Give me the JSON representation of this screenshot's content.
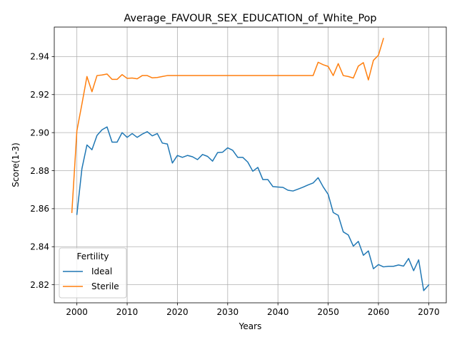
{
  "chart_data": {
    "type": "line",
    "title": "Average_FAVOUR_SEX_EDUCATION_of_White_Pop",
    "xlabel": "Years",
    "ylabel": "Score(1-3)",
    "xlim": [
      1995.5,
      2073.5
    ],
    "ylim": [
      2.8105,
      2.9555
    ],
    "xticks": [
      2000,
      2010,
      2020,
      2030,
      2040,
      2050,
      2060,
      2070
    ],
    "yticks": [
      2.82,
      2.84,
      2.86,
      2.88,
      2.9,
      2.92,
      2.94
    ],
    "grid": true,
    "legend": {
      "title": "Fertility",
      "placement": "lower-left"
    },
    "series": [
      {
        "name": "Ideal",
        "color": "#1f77b4",
        "x": [
          2000,
          2001,
          2002,
          2003,
          2004,
          2005,
          2006,
          2007,
          2008,
          2009,
          2010,
          2011,
          2012,
          2013,
          2014,
          2015,
          2016,
          2017,
          2018,
          2019,
          2020,
          2021,
          2022,
          2023,
          2024,
          2025,
          2026,
          2027,
          2028,
          2029,
          2030,
          2031,
          2032,
          2033,
          2034,
          2035,
          2036,
          2037,
          2038,
          2039,
          2040,
          2041,
          2042,
          2043,
          2044,
          2045,
          2046,
          2047,
          2048,
          2049,
          2050,
          2051,
          2052,
          2053,
          2054,
          2055,
          2056,
          2057,
          2058,
          2059,
          2060,
          2061,
          2062,
          2063,
          2064,
          2065,
          2066,
          2067,
          2068,
          2069,
          2070
        ],
        "y": [
          2.857,
          2.881,
          2.8935,
          2.891,
          2.8985,
          2.9015,
          2.903,
          2.895,
          2.895,
          2.9,
          2.8975,
          2.8995,
          2.8975,
          2.8992,
          2.9005,
          2.8983,
          2.8995,
          2.8945,
          2.894,
          2.884,
          2.888,
          2.887,
          2.888,
          2.8873,
          2.8858,
          2.8885,
          2.8875,
          2.885,
          2.8895,
          2.8897,
          2.892,
          2.8907,
          2.887,
          2.887,
          2.8845,
          2.8797,
          2.8817,
          2.8753,
          2.8753,
          2.8716,
          2.8714,
          2.8712,
          2.8697,
          2.8693,
          2.8703,
          2.8713,
          2.8725,
          2.8735,
          2.8763,
          2.8715,
          2.8675,
          2.858,
          2.8565,
          2.8478,
          2.8462,
          2.8403,
          2.8428,
          2.8355,
          2.8378,
          2.8284,
          2.8306,
          2.8294,
          2.8297,
          2.8297,
          2.8304,
          2.8298,
          2.8338,
          2.8274,
          2.8331,
          2.8169,
          2.8199
        ]
      },
      {
        "name": "Sterile",
        "color": "#ff7f0e",
        "x": [
          1999,
          2000,
          2001,
          2002,
          2003,
          2004,
          2005,
          2006,
          2007,
          2008,
          2009,
          2010,
          2011,
          2012,
          2013,
          2014,
          2015,
          2016,
          2017,
          2018,
          2019,
          2020,
          2021,
          2022,
          2023,
          2024,
          2025,
          2026,
          2027,
          2028,
          2029,
          2030,
          2031,
          2032,
          2033,
          2034,
          2035,
          2036,
          2037,
          2038,
          2039,
          2040,
          2041,
          2042,
          2043,
          2044,
          2045,
          2046,
          2047,
          2048,
          2049,
          2050,
          2051,
          2052,
          2053,
          2054,
          2055,
          2056,
          2057,
          2058,
          2059,
          2060,
          2061
        ],
        "y": [
          2.858,
          2.901,
          2.915,
          2.9295,
          2.9215,
          2.93,
          2.9303,
          2.9308,
          2.928,
          2.928,
          2.9305,
          2.9285,
          2.9287,
          2.9283,
          2.93,
          2.93,
          2.9288,
          2.929,
          2.9295,
          2.93,
          2.93,
          2.93,
          2.93,
          2.93,
          2.93,
          2.93,
          2.93,
          2.93,
          2.93,
          2.93,
          2.93,
          2.93,
          2.93,
          2.93,
          2.93,
          2.93,
          2.93,
          2.93,
          2.93,
          2.93,
          2.93,
          2.93,
          2.93,
          2.93,
          2.93,
          2.93,
          2.93,
          2.93,
          2.93,
          2.937,
          2.9357,
          2.9348,
          2.93,
          2.9363,
          2.93,
          2.9295,
          2.9287,
          2.935,
          2.9368,
          2.9277,
          2.938,
          2.9407,
          2.9495
        ]
      }
    ]
  }
}
